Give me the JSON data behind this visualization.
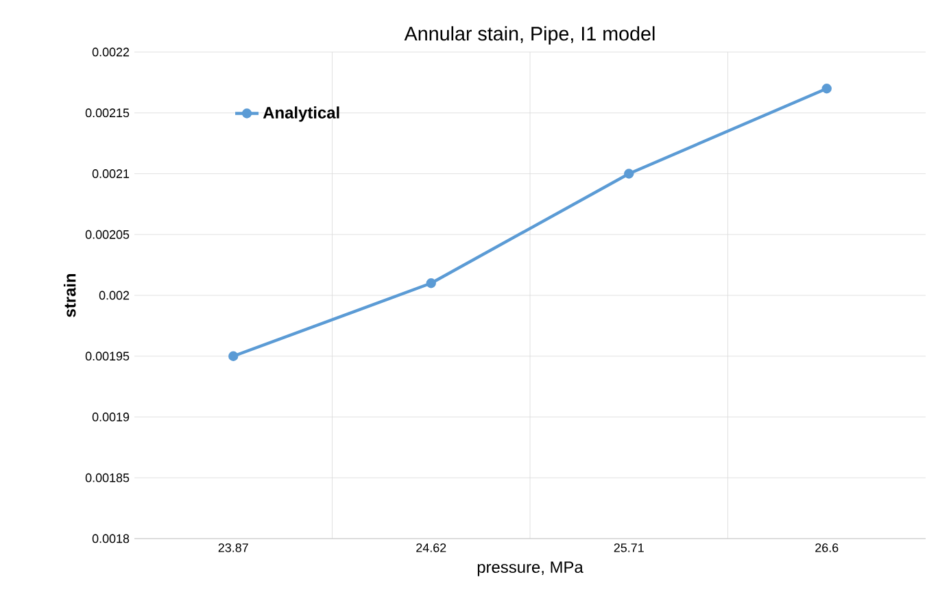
{
  "chart_data": {
    "type": "line",
    "title": "Annular stain, Pipe, I1 model",
    "xlabel": "pressure, MPa",
    "ylabel": "strain",
    "categories": [
      "23.87",
      "24.62",
      "25.71",
      "26.6"
    ],
    "series": [
      {
        "name": "Analytical",
        "color": "#5b9bd5",
        "values": [
          0.00195,
          0.00201,
          0.0021,
          0.00217
        ]
      }
    ],
    "ylim": [
      0.0018,
      0.0022
    ],
    "yticks": [
      0.0018,
      0.00185,
      0.0019,
      0.00195,
      0.002,
      0.00205,
      0.0021,
      0.00215,
      0.0022
    ],
    "grid": true,
    "legend": "top left",
    "marker": "circle",
    "line_style": "solid"
  }
}
